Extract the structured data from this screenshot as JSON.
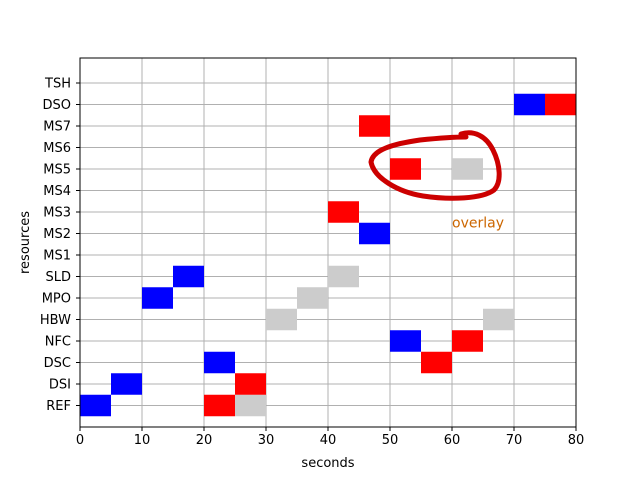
{
  "chart_data": {
    "type": "heatmap",
    "title": "",
    "xlabel": "seconds",
    "ylabel": "resources",
    "xlim": [
      0,
      80
    ],
    "x_ticks": [
      0,
      10,
      20,
      30,
      40,
      50,
      60,
      70,
      80
    ],
    "grid": true,
    "resources": [
      "REF",
      "DSI",
      "DSC",
      "NFC",
      "HBW",
      "MPO",
      "SLD",
      "MS1",
      "MS2",
      "MS3",
      "MS4",
      "MS5",
      "MS6",
      "MS7",
      "DSO",
      "TSH"
    ],
    "colors": {
      "blue": "#0000ff",
      "red": "#ff0000",
      "gray": "#cccccc",
      "annotation": "#cc0000",
      "annotation_text": "#cc6600"
    },
    "blocks": [
      {
        "resource": "REF",
        "start": 0,
        "end": 5,
        "color": "blue"
      },
      {
        "resource": "REF",
        "start": 20,
        "end": 25,
        "color": "red"
      },
      {
        "resource": "REF",
        "start": 25,
        "end": 30,
        "color": "gray"
      },
      {
        "resource": "DSI",
        "start": 5,
        "end": 10,
        "color": "blue"
      },
      {
        "resource": "DSI",
        "start": 25,
        "end": 30,
        "color": "red"
      },
      {
        "resource": "DSC",
        "start": 20,
        "end": 25,
        "color": "blue"
      },
      {
        "resource": "DSC",
        "start": 55,
        "end": 60,
        "color": "red"
      },
      {
        "resource": "NFC",
        "start": 50,
        "end": 55,
        "color": "blue"
      },
      {
        "resource": "NFC",
        "start": 60,
        "end": 65,
        "color": "red"
      },
      {
        "resource": "HBW",
        "start": 30,
        "end": 35,
        "color": "gray"
      },
      {
        "resource": "HBW",
        "start": 65,
        "end": 70,
        "color": "gray"
      },
      {
        "resource": "MPO",
        "start": 10,
        "end": 15,
        "color": "blue"
      },
      {
        "resource": "MPO",
        "start": 35,
        "end": 40,
        "color": "gray"
      },
      {
        "resource": "SLD",
        "start": 15,
        "end": 20,
        "color": "blue"
      },
      {
        "resource": "SLD",
        "start": 40,
        "end": 45,
        "color": "gray"
      },
      {
        "resource": "MS2",
        "start": 45,
        "end": 50,
        "color": "blue"
      },
      {
        "resource": "MS3",
        "start": 40,
        "end": 45,
        "color": "red"
      },
      {
        "resource": "MS5",
        "start": 50,
        "end": 55,
        "color": "red"
      },
      {
        "resource": "MS5",
        "start": 60,
        "end": 65,
        "color": "gray"
      },
      {
        "resource": "MS7",
        "start": 45,
        "end": 50,
        "color": "red"
      },
      {
        "resource": "DSO",
        "start": 70,
        "end": 75,
        "color": "blue"
      },
      {
        "resource": "DSO",
        "start": 75,
        "end": 80,
        "color": "red"
      }
    ],
    "annotation": {
      "text": "overlay",
      "x": 60,
      "y_resource": "MS2"
    }
  }
}
